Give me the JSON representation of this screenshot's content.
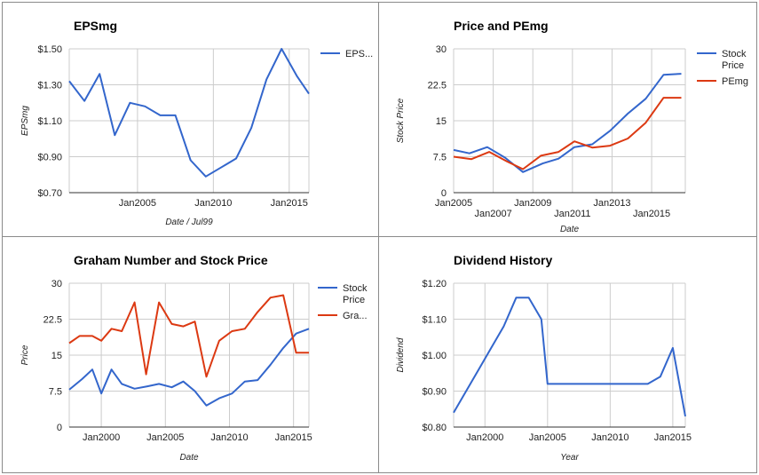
{
  "colors": {
    "blue": "#3366cc",
    "red": "#dc3912",
    "grid": "#cccccc"
  },
  "chart_data": [
    {
      "type": "line",
      "title": "EPSmg",
      "xlabel": "Date / Jul99",
      "ylabel": "EPSmg",
      "x_ticks": [
        "Jan2005",
        "Jan2010",
        "Jan2015"
      ],
      "x_tick_values": [
        2005,
        2010,
        2015
      ],
      "xlim": [
        2000.5,
        2016.3
      ],
      "y_ticks": [
        "$0.70",
        "$0.90",
        "$1.10",
        "$1.30",
        "$1.50"
      ],
      "ylim": [
        0.7,
        1.5
      ],
      "legend_position": "right",
      "series": [
        {
          "name": "EPS...",
          "color": "#3366cc",
          "x": [
            2000.5,
            2001.5,
            2002.5,
            2003.5,
            2004.5,
            2005.5,
            2006.5,
            2007.5,
            2008.5,
            2009.5,
            2010.5,
            2011.5,
            2012.5,
            2013.5,
            2014.5,
            2015.5,
            2016.3
          ],
          "values": [
            1.32,
            1.21,
            1.36,
            1.02,
            1.2,
            1.18,
            1.13,
            1.13,
            0.88,
            0.79,
            0.84,
            0.89,
            1.06,
            1.33,
            1.5,
            1.35,
            1.25
          ]
        }
      ]
    },
    {
      "type": "line",
      "title": "Price and PEmg",
      "xlabel": "Date",
      "ylabel": "Stock Price",
      "x_ticks": [
        "Jan2005",
        "Jan2007",
        "Jan2009",
        "Jan2011",
        "Jan2013",
        "Jan2015"
      ],
      "x_tick_values": [
        2005,
        2007,
        2009,
        2011,
        2013,
        2015
      ],
      "xlim": [
        2005,
        2016.7
      ],
      "y_ticks": [
        "0",
        "7.5",
        "15",
        "22.5",
        "30"
      ],
      "ylim": [
        0,
        30
      ],
      "legend_position": "right",
      "series": [
        {
          "name": "Stock Price",
          "color": "#3366cc",
          "x": [
            2005,
            2005.8,
            2006.7,
            2007.6,
            2008.5,
            2009.5,
            2010.3,
            2011.1,
            2012.0,
            2012.9,
            2013.8,
            2014.7,
            2015.6,
            2016.5
          ],
          "values": [
            8.9,
            8.2,
            9.5,
            7.3,
            4.3,
            6.1,
            7.1,
            9.5,
            10.1,
            12.9,
            16.5,
            19.6,
            24.6,
            24.8
          ]
        },
        {
          "name": "PEmg",
          "color": "#dc3912",
          "x": [
            2005,
            2005.9,
            2006.8,
            2007.7,
            2008.5,
            2009.4,
            2010.3,
            2011.1,
            2012.0,
            2012.9,
            2013.8,
            2014.7,
            2015.6,
            2016.5
          ],
          "values": [
            7.5,
            7.0,
            8.5,
            6.5,
            4.9,
            7.7,
            8.5,
            10.7,
            9.4,
            9.8,
            11.3,
            14.6,
            19.8,
            19.8
          ]
        }
      ]
    },
    {
      "type": "line",
      "title": "Graham Number and Stock Price",
      "xlabel": "Date",
      "ylabel": "Price",
      "x_ticks": [
        "Jan2000",
        "Jan2005",
        "Jan2010",
        "Jan2015"
      ],
      "x_tick_values": [
        2000,
        2005,
        2010,
        2015
      ],
      "xlim": [
        1997.5,
        2016.2
      ],
      "y_ticks": [
        "0",
        "7.5",
        "15",
        "22.5",
        "30"
      ],
      "ylim": [
        0,
        30
      ],
      "legend_position": "right",
      "series": [
        {
          "name": "Stock Price",
          "color": "#3366cc",
          "x": [
            1997.5,
            1998.5,
            1999.3,
            2000.0,
            2000.8,
            2001.6,
            2002.6,
            2003.6,
            2004.5,
            2005.5,
            2006.4,
            2007.3,
            2008.2,
            2009.2,
            2010.2,
            2011.2,
            2012.2,
            2013.2,
            2014.2,
            2015.2,
            2016.2
          ],
          "values": [
            7.8,
            10.0,
            12.0,
            7.0,
            12.0,
            9.0,
            8.0,
            8.5,
            9.0,
            8.3,
            9.5,
            7.5,
            4.5,
            6.0,
            7.0,
            9.5,
            9.8,
            13.0,
            16.5,
            19.5,
            20.5
          ]
        },
        {
          "name": "Gra...",
          "color": "#dc3912",
          "x": [
            1997.5,
            1998.3,
            1999.3,
            2000.0,
            2000.8,
            2001.6,
            2002.6,
            2003.5,
            2004.5,
            2005.5,
            2006.4,
            2007.3,
            2008.2,
            2009.2,
            2010.2,
            2011.2,
            2012.2,
            2013.2,
            2014.2,
            2015.2,
            2016.2
          ],
          "values": [
            17.5,
            19.0,
            19.0,
            18.0,
            20.5,
            20.0,
            26.0,
            11.0,
            26.0,
            21.5,
            21.0,
            22.0,
            10.5,
            18.0,
            20.0,
            20.5,
            24.0,
            27.0,
            27.5,
            15.5,
            15.5
          ]
        }
      ]
    },
    {
      "type": "line",
      "title": "Dividend History",
      "xlabel": "Year",
      "ylabel": "Dividend",
      "x_ticks": [
        "Jan2000",
        "Jan2005",
        "Jan2010",
        "Jan2015"
      ],
      "x_tick_values": [
        2000,
        2005,
        2010,
        2015
      ],
      "xlim": [
        1997.5,
        2016.0
      ],
      "y_ticks": [
        "$0.80",
        "$0.90",
        "$1.00",
        "$1.10",
        "$1.20"
      ],
      "ylim": [
        0.8,
        1.2
      ],
      "legend_position": "none",
      "series": [
        {
          "name": "",
          "color": "#3366cc",
          "x": [
            1997.5,
            1998.5,
            1999.5,
            2000.5,
            2001.5,
            2002.5,
            2003.5,
            2004.5,
            2005.0,
            2007.0,
            2009.0,
            2011.0,
            2012.0,
            2013.0,
            2014.0,
            2015.0,
            2016.0
          ],
          "values": [
            0.84,
            0.9,
            0.96,
            1.02,
            1.08,
            1.16,
            1.16,
            1.1,
            0.92,
            0.92,
            0.92,
            0.92,
            0.92,
            0.92,
            0.94,
            1.02,
            0.83
          ]
        }
      ]
    }
  ]
}
